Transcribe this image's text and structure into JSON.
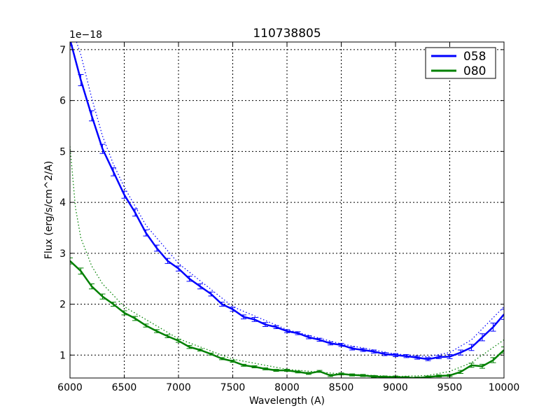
{
  "chart_data": {
    "type": "line",
    "title": "110738805",
    "xlabel": "Wavelength (A)",
    "ylabel": "Flux (erg/s/cm^2/A)",
    "y_offset_label": "1e−18",
    "xlim": [
      6000,
      10000
    ],
    "ylim": [
      0.55,
      7.15
    ],
    "xticks": [
      6000,
      6500,
      7000,
      7500,
      8000,
      8500,
      9000,
      9500,
      10000
    ],
    "yticks": [
      1,
      2,
      3,
      4,
      5,
      6,
      7
    ],
    "grid": true,
    "legend_position": "top-right",
    "x": [
      6000,
      6100,
      6200,
      6300,
      6400,
      6500,
      6600,
      6700,
      6800,
      6900,
      7000,
      7100,
      7200,
      7300,
      7400,
      7500,
      7600,
      7700,
      7800,
      7900,
      8000,
      8100,
      8200,
      8300,
      8400,
      8500,
      8600,
      8700,
      8800,
      8900,
      9000,
      9100,
      9200,
      9300,
      9400,
      9500,
      9600,
      9700,
      9800,
      9900,
      10000
    ],
    "series": [
      {
        "name": "058",
        "color": "#0000ff",
        "values": [
          7.2,
          6.4,
          5.7,
          5.05,
          4.6,
          4.15,
          3.8,
          3.4,
          3.1,
          2.85,
          2.7,
          2.5,
          2.35,
          2.2,
          2.0,
          1.9,
          1.75,
          1.7,
          1.6,
          1.55,
          1.47,
          1.43,
          1.35,
          1.3,
          1.23,
          1.2,
          1.13,
          1.1,
          1.07,
          1.02,
          1.0,
          0.98,
          0.95,
          0.92,
          0.96,
          0.97,
          1.05,
          1.15,
          1.35,
          1.55,
          1.8
        ],
        "error": [
          0.12,
          0.11,
          0.1,
          0.09,
          0.08,
          0.07,
          0.07,
          0.06,
          0.06,
          0.05,
          0.05,
          0.05,
          0.05,
          0.04,
          0.04,
          0.04,
          0.04,
          0.04,
          0.04,
          0.03,
          0.03,
          0.03,
          0.03,
          0.03,
          0.03,
          0.03,
          0.03,
          0.03,
          0.03,
          0.03,
          0.03,
          0.03,
          0.03,
          0.03,
          0.03,
          0.04,
          0.05,
          0.06,
          0.07,
          0.08,
          0.1
        ],
        "model_x": [
          6060,
          6100,
          6200,
          6300,
          6400,
          6500,
          6700,
          7000,
          7500,
          8000,
          8500,
          9000,
          9300,
          9500,
          9700,
          10000
        ],
        "model": [
          7.15,
          6.9,
          6.05,
          5.3,
          4.75,
          4.3,
          3.55,
          2.8,
          1.95,
          1.5,
          1.22,
          1.02,
          0.97,
          1.05,
          1.3,
          1.95
        ]
      },
      {
        "name": "080",
        "color": "#008000",
        "values": [
          2.85,
          2.65,
          2.35,
          2.15,
          2.0,
          1.83,
          1.72,
          1.58,
          1.47,
          1.37,
          1.28,
          1.16,
          1.1,
          1.02,
          0.93,
          0.88,
          0.8,
          0.77,
          0.73,
          0.7,
          0.7,
          0.67,
          0.64,
          0.68,
          0.6,
          0.63,
          0.61,
          0.6,
          0.58,
          0.57,
          0.57,
          0.56,
          0.55,
          0.57,
          0.59,
          0.6,
          0.67,
          0.8,
          0.78,
          0.9,
          1.1
        ],
        "error": [
          0.06,
          0.06,
          0.05,
          0.05,
          0.04,
          0.04,
          0.04,
          0.03,
          0.03,
          0.03,
          0.03,
          0.03,
          0.02,
          0.02,
          0.02,
          0.02,
          0.02,
          0.02,
          0.02,
          0.02,
          0.02,
          0.02,
          0.02,
          0.02,
          0.02,
          0.02,
          0.02,
          0.02,
          0.02,
          0.02,
          0.02,
          0.02,
          0.02,
          0.02,
          0.02,
          0.02,
          0.03,
          0.04,
          0.04,
          0.05,
          0.06
        ],
        "model_x": [
          6000,
          6050,
          6100,
          6200,
          6300,
          6500,
          7000,
          7500,
          8000,
          8500,
          9000,
          9300,
          9500,
          9700,
          10000
        ],
        "model": [
          5.1,
          3.9,
          3.3,
          2.75,
          2.4,
          1.95,
          1.32,
          0.92,
          0.72,
          0.63,
          0.58,
          0.6,
          0.68,
          0.85,
          1.3
        ]
      }
    ]
  }
}
